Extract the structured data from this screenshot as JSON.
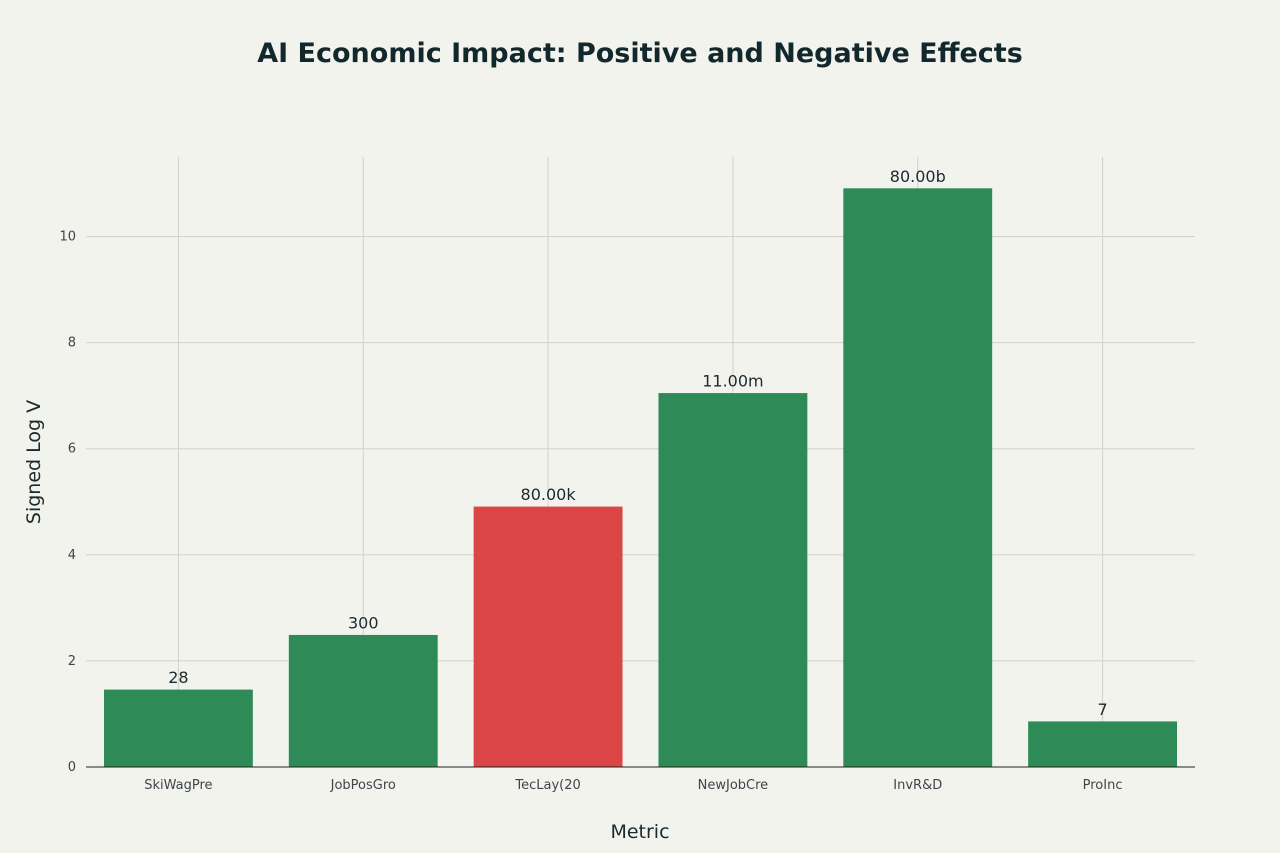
{
  "chart_data": {
    "type": "bar",
    "title": "AI Economic Impact: Positive and Negative Effects",
    "xlabel": "Metric",
    "ylabel": "Signed Log V",
    "ylim": [
      0,
      11.5
    ],
    "yticks": [
      0,
      2,
      4,
      6,
      8,
      10
    ],
    "grid": true,
    "categories": [
      "SkiWagPre",
      "JobPosGro",
      "TecLay(20",
      "NewJobCre",
      "InvR&D",
      "ProInc"
    ],
    "values": [
      1.45,
      2.48,
      4.9,
      7.04,
      10.9,
      0.85
    ],
    "data_labels": [
      "28",
      "300",
      "80.00k",
      "11.00m",
      "80.00b",
      "7"
    ],
    "effect": [
      "positive",
      "positive",
      "negative",
      "positive",
      "positive",
      "positive"
    ],
    "colors": {
      "positive": "#2e8b57",
      "negative": "#db4545"
    }
  }
}
